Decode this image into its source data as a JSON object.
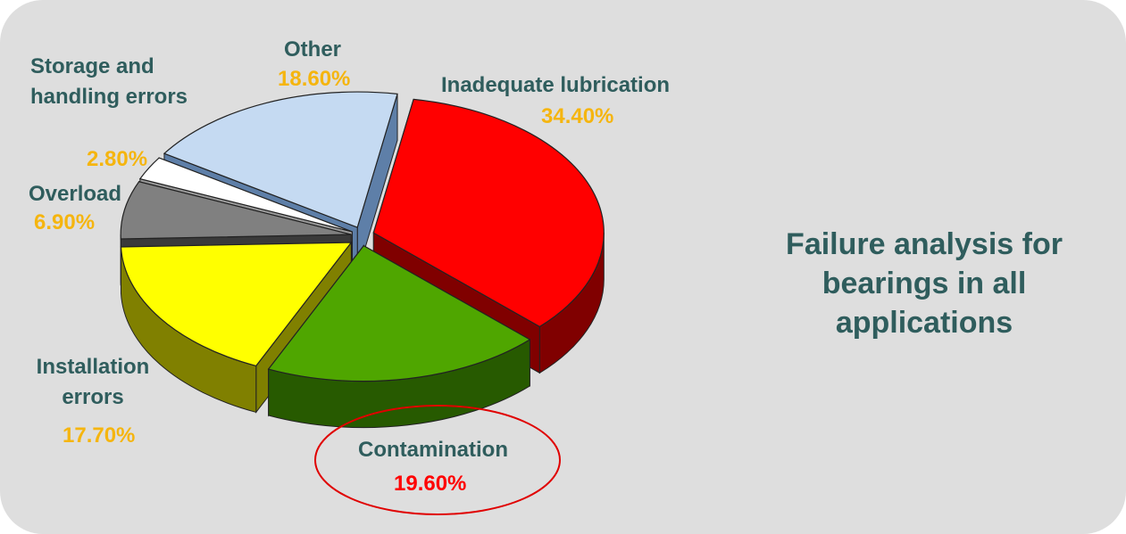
{
  "chart_data": {
    "type": "pie",
    "title": "Failure analysis for bearings in all applications",
    "slices": [
      {
        "label": "Inadequate lubrication",
        "value": 34.4,
        "value_label": "34.40%",
        "color": "#ff0000",
        "side": "#800000"
      },
      {
        "label": "Contamination",
        "value": 19.6,
        "value_label": "19.60%",
        "color": "#4fa600",
        "side": "#275a00",
        "highlighted": true
      },
      {
        "label": "Installation errors",
        "value": 17.7,
        "value_label": "17.70%",
        "color": "#ffff00",
        "side": "#808000"
      },
      {
        "label": "Overload",
        "value": 6.9,
        "value_label": "6.90%",
        "color": "#808080",
        "side": "#3a3a3a"
      },
      {
        "label": "Storage and handling errors",
        "value": 2.8,
        "value_label": "2.80%",
        "color": "#ffffff",
        "side": "#9a9a9a"
      },
      {
        "label": "Other",
        "value": 18.6,
        "value_label": "18.60%",
        "color": "#c5daf2",
        "side": "#5e7fa8"
      }
    ],
    "legend": "none",
    "labels": "outside",
    "highlight_color": "#e00000",
    "text_color": "#2f5d5d",
    "value_color": "#f5b50f"
  }
}
